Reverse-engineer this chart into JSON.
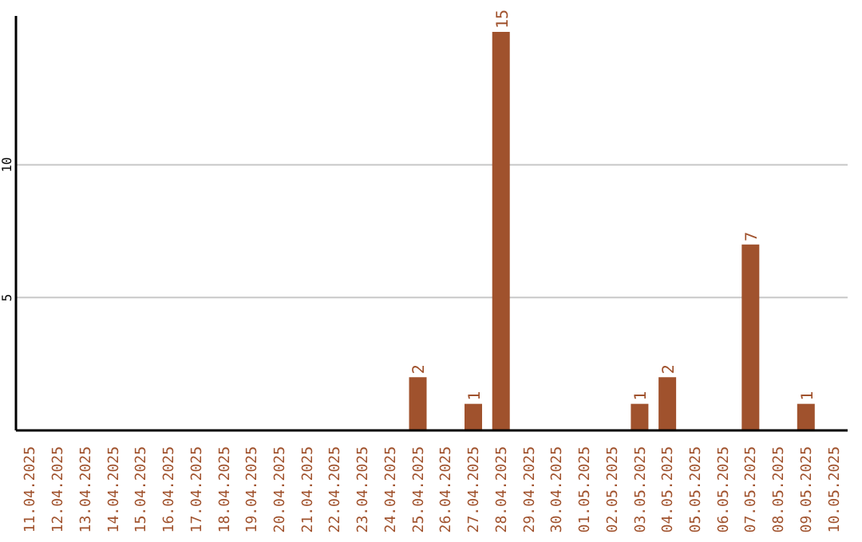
{
  "chart_data": {
    "type": "bar",
    "categories": [
      "11.04.2025",
      "12.04.2025",
      "13.04.2025",
      "14.04.2025",
      "15.04.2025",
      "16.04.2025",
      "17.04.2025",
      "18.04.2025",
      "19.04.2025",
      "20.04.2025",
      "21.04.2025",
      "22.04.2025",
      "23.04.2025",
      "24.04.2025",
      "25.04.2025",
      "26.04.2025",
      "27.04.2025",
      "28.04.2025",
      "29.04.2025",
      "30.04.2025",
      "01.05.2025",
      "02.05.2025",
      "03.05.2025",
      "04.05.2025",
      "05.05.2025",
      "06.05.2025",
      "07.05.2025",
      "08.05.2025",
      "09.05.2025",
      "10.05.2025"
    ],
    "values": [
      0,
      0,
      0,
      0,
      0,
      0,
      0,
      0,
      0,
      0,
      0,
      0,
      0,
      0,
      2,
      0,
      1,
      15,
      0,
      0,
      0,
      0,
      1,
      2,
      0,
      0,
      7,
      0,
      1,
      0
    ],
    "value_labels": [
      null,
      null,
      null,
      null,
      null,
      null,
      null,
      null,
      null,
      null,
      null,
      null,
      null,
      null,
      "2",
      null,
      "1",
      "15",
      null,
      null,
      null,
      null,
      "1",
      "2",
      null,
      null,
      "7",
      null,
      "1",
      null
    ],
    "color": "#a0522d",
    "ylim": [
      0,
      15.6
    ],
    "yticks": [
      5,
      10
    ],
    "grid": "y"
  }
}
